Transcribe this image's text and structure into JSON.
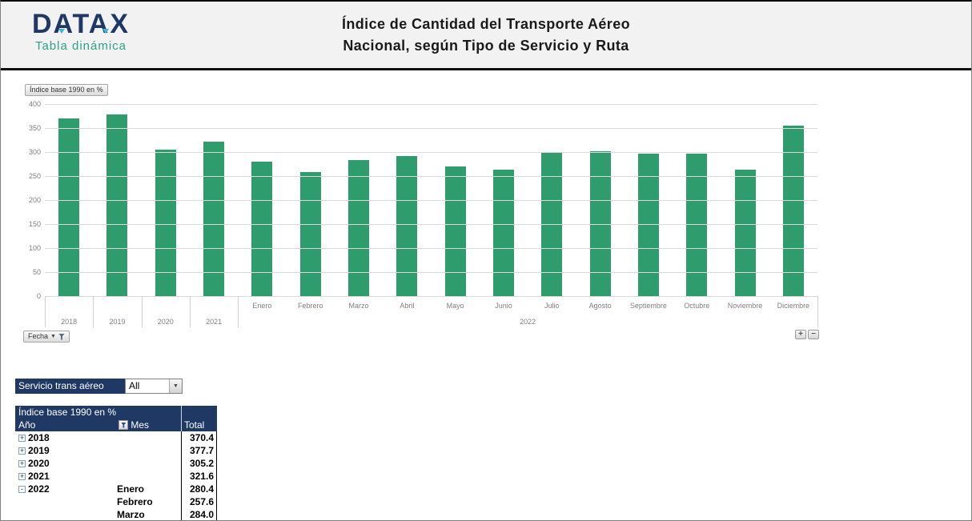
{
  "header": {
    "logo_text": "DATAX",
    "logo_subtitle": "Tabla dinámica",
    "title_line1": "Índice de Cantidad del Transporte Aéreo",
    "title_line2": "Nacional, según Tipo de Servicio y Ruta"
  },
  "chart": {
    "value_field_button": "Índice base 1990 en %",
    "fecha_field_button": "Fecha",
    "zoom_in_label": "+",
    "zoom_out_label": "−"
  },
  "chart_data": {
    "type": "bar",
    "title": "Índice base 1990 en %",
    "categories": [
      "2018",
      "2019",
      "2020",
      "2021",
      "Enero",
      "Febrero",
      "Marzo",
      "Abril",
      "Mayo",
      "Junio",
      "Julio",
      "Agosto",
      "Septiembre",
      "Octubre",
      "Noviembre",
      "Diciembre"
    ],
    "values": [
      370.4,
      377.7,
      305.2,
      321.6,
      280.4,
      257.6,
      284.0,
      291,
      270,
      264,
      300,
      301,
      297,
      296,
      264,
      355
    ],
    "groups": [
      {
        "label": "2018",
        "span": 1
      },
      {
        "label": "2019",
        "span": 1
      },
      {
        "label": "2020",
        "span": 1
      },
      {
        "label": "2021",
        "span": 1
      },
      {
        "label": "2022",
        "span": 12,
        "sub": [
          "Enero",
          "Febrero",
          "Marzo",
          "Abril",
          "Mayo",
          "Junio",
          "Julio",
          "Agosto",
          "Septiembre",
          "Octubre",
          "Noviembre",
          "Diciembre"
        ]
      }
    ],
    "ylim": [
      0,
      400
    ],
    "ytick_step": 50,
    "bar_color": "#2F9C6E",
    "grid": true,
    "legend": false
  },
  "filter": {
    "label": "Servicio trans aéreo",
    "value": "All"
  },
  "pivot": {
    "title": "Índice base 1990 en %",
    "col_year": "Año",
    "col_mes": "Mes",
    "col_total": "Total",
    "rows": [
      {
        "expand": "+",
        "year": "2018",
        "mes": "",
        "total": "370.4"
      },
      {
        "expand": "+",
        "year": "2019",
        "mes": "",
        "total": "377.7"
      },
      {
        "expand": "+",
        "year": "2020",
        "mes": "",
        "total": "305.2"
      },
      {
        "expand": "+",
        "year": "2021",
        "mes": "",
        "total": "321.6"
      },
      {
        "expand": "-",
        "year": "2022",
        "mes": "Enero",
        "total": "280.4"
      },
      {
        "expand": "",
        "year": "",
        "mes": "Febrero",
        "total": "257.6"
      },
      {
        "expand": "",
        "year": "",
        "mes": "Marzo",
        "total": "284.0"
      }
    ]
  }
}
